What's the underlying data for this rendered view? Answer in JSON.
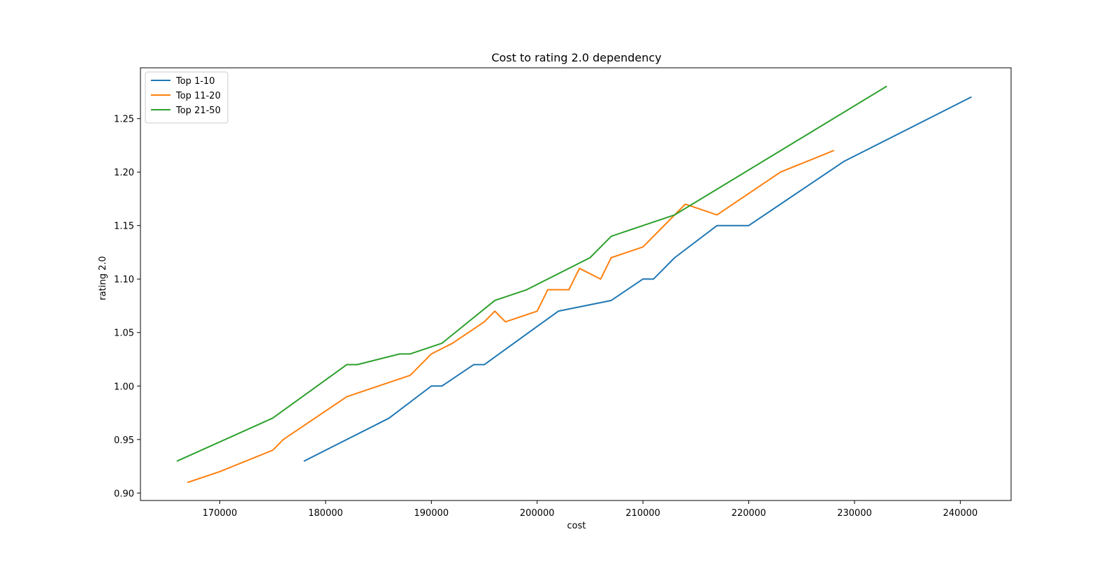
{
  "chart_data": {
    "type": "line",
    "title": "Cost to rating 2.0 dependency",
    "xlabel": "cost",
    "ylabel": "rating 2.0",
    "xlim": [
      162500,
      244800
    ],
    "ylim": [
      0.893,
      1.2975
    ],
    "xticks": [
      170000,
      180000,
      190000,
      200000,
      210000,
      220000,
      230000,
      240000
    ],
    "yticks": [
      0.9,
      0.95,
      1.0,
      1.05,
      1.1,
      1.15,
      1.2,
      1.25
    ],
    "xtick_labels": [
      "170000",
      "180000",
      "190000",
      "200000",
      "210000",
      "220000",
      "230000",
      "240000"
    ],
    "ytick_labels": [
      "0.90",
      "0.95",
      "1.00",
      "1.05",
      "1.10",
      "1.15",
      "1.20",
      "1.25"
    ],
    "grid": false,
    "legend_position": "top-left",
    "series": [
      {
        "name": "Top 1-10",
        "color": "#1f77b4",
        "x": [
          178000,
          186000,
          190000,
          191000,
          194000,
          195000,
          202000,
          207000,
          210000,
          211000,
          213000,
          217000,
          220000,
          229000,
          241000
        ],
        "y": [
          0.93,
          0.97,
          1.0,
          1.0,
          1.02,
          1.02,
          1.07,
          1.08,
          1.1,
          1.1,
          1.12,
          1.15,
          1.15,
          1.21,
          1.27
        ]
      },
      {
        "name": "Top 11-20",
        "color": "#ff7f0e",
        "x": [
          167000,
          170000,
          175000,
          176000,
          182000,
          188000,
          190000,
          192000,
          195000,
          196000,
          197000,
          200000,
          201000,
          203000,
          204000,
          206000,
          207000,
          210000,
          214000,
          217000,
          223000,
          228000
        ],
        "y": [
          0.91,
          0.92,
          0.94,
          0.95,
          0.99,
          1.01,
          1.03,
          1.04,
          1.06,
          1.07,
          1.06,
          1.07,
          1.09,
          1.09,
          1.11,
          1.1,
          1.12,
          1.13,
          1.17,
          1.16,
          1.2,
          1.22
        ]
      },
      {
        "name": "Top 21-50",
        "color": "#2ca02c",
        "x": [
          166000,
          175000,
          182000,
          183000,
          187000,
          188000,
          191000,
          196000,
          199000,
          205000,
          207000,
          213000,
          233000
        ],
        "y": [
          0.93,
          0.97,
          1.02,
          1.02,
          1.03,
          1.03,
          1.04,
          1.08,
          1.09,
          1.12,
          1.14,
          1.16,
          1.28
        ]
      }
    ]
  }
}
